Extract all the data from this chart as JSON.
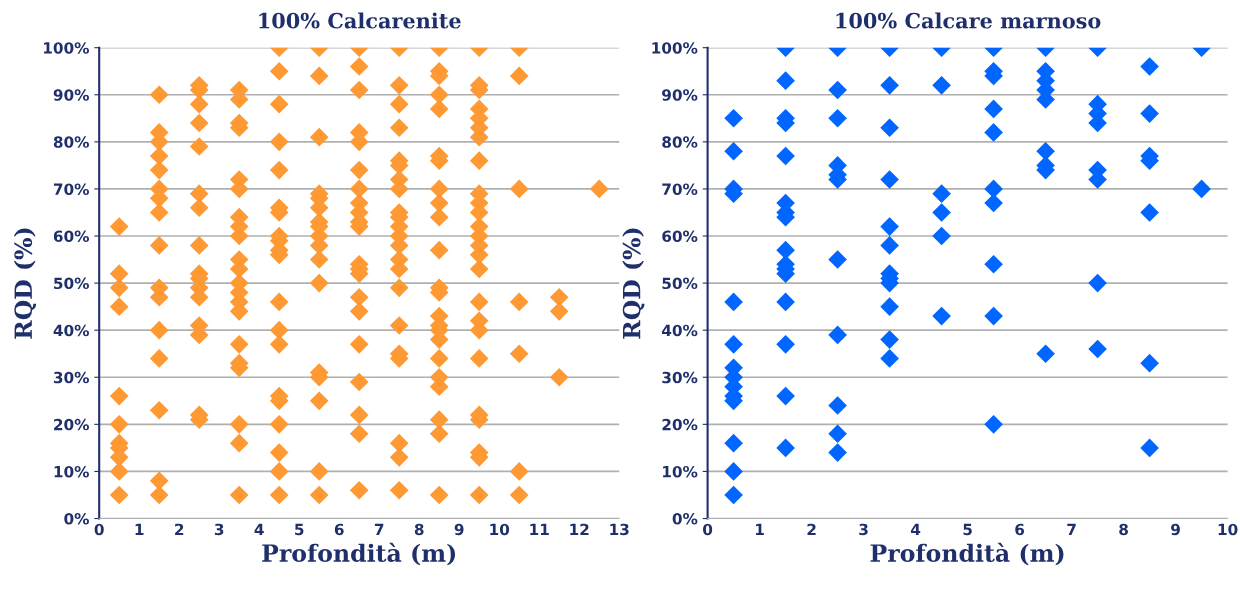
{
  "chart_data": [
    {
      "type": "scatter",
      "title": "100% Calcarenite",
      "xlabel": "Profondità (m)",
      "ylabel": "RQD (%)",
      "xlim": [
        0,
        13
      ],
      "xticks": [
        0,
        1,
        2,
        3,
        4,
        5,
        6,
        7,
        8,
        9,
        10,
        11,
        12,
        13
      ],
      "ylim": [
        0,
        100
      ],
      "yticks": [
        {
          "value": 0,
          "label": "0%"
        },
        {
          "value": 10,
          "label": "10%"
        },
        {
          "value": 20,
          "label": "20%"
        },
        {
          "value": 30,
          "label": "30%"
        },
        {
          "value": 40,
          "label": "40%"
        },
        {
          "value": 50,
          "label": "50%"
        },
        {
          "value": 60,
          "label": "60%"
        },
        {
          "value": 70,
          "label": "70%"
        },
        {
          "value": 80,
          "label": "80%"
        },
        {
          "value": 90,
          "label": "90%"
        },
        {
          "value": 100,
          "label": "100%"
        }
      ],
      "grid": "y",
      "marker": "diamond",
      "series": [
        {
          "color": "#ff9933",
          "x": [
            0.5,
            0.5,
            0.5,
            0.5,
            0.5,
            0.5,
            0.5,
            0.5,
            0.5,
            0.5,
            0.5,
            1.5,
            1.5,
            1.5,
            1.5,
            1.5,
            1.5,
            1.5,
            1.5,
            1.5,
            1.5,
            1.5,
            1.5,
            1.5,
            1.5,
            1.5,
            1.5,
            2.5,
            2.5,
            2.5,
            2.5,
            2.5,
            2.5,
            2.5,
            2.5,
            2.5,
            2.5,
            2.5,
            2.5,
            2.5,
            2.5,
            2.5,
            2.5,
            3.5,
            3.5,
            3.5,
            3.5,
            3.5,
            3.5,
            3.5,
            3.5,
            3.5,
            3.5,
            3.5,
            3.5,
            3.5,
            3.5,
            3.5,
            3.5,
            3.5,
            3.5,
            3.5,
            3.5,
            3.5,
            4.5,
            4.5,
            4.5,
            4.5,
            4.5,
            4.5,
            4.5,
            4.5,
            4.5,
            4.5,
            4.5,
            4.5,
            4.5,
            4.5,
            4.5,
            4.5,
            4.5,
            4.5,
            4.5,
            4.5,
            5.5,
            5.5,
            5.5,
            5.5,
            5.5,
            5.5,
            5.5,
            5.5,
            5.5,
            5.5,
            5.5,
            5.5,
            5.5,
            5.5,
            5.5,
            5.5,
            5.5,
            6.5,
            6.5,
            6.5,
            6.5,
            6.5,
            6.5,
            6.5,
            6.5,
            6.5,
            6.5,
            6.5,
            6.5,
            6.5,
            6.5,
            6.5,
            6.5,
            6.5,
            6.5,
            6.5,
            6.5,
            6.5,
            7.5,
            7.5,
            7.5,
            7.5,
            7.5,
            7.5,
            7.5,
            7.5,
            7.5,
            7.5,
            7.5,
            7.5,
            7.5,
            7.5,
            7.5,
            7.5,
            7.5,
            7.5,
            7.5,
            7.5,
            7.5,
            7.5,
            8.5,
            8.5,
            8.5,
            8.5,
            8.5,
            8.5,
            8.5,
            8.5,
            8.5,
            8.5,
            8.5,
            8.5,
            8.5,
            8.5,
            8.5,
            8.5,
            8.5,
            8.5,
            8.5,
            8.5,
            8.5,
            8.5,
            8.5,
            9.5,
            9.5,
            9.5,
            9.5,
            9.5,
            9.5,
            9.5,
            9.5,
            9.5,
            9.5,
            9.5,
            9.5,
            9.5,
            9.5,
            9.5,
            9.5,
            9.5,
            9.5,
            9.5,
            9.5,
            9.5,
            9.5,
            9.5,
            9.5,
            9.5,
            10.5,
            10.5,
            10.5,
            10.5,
            10.5,
            10.5,
            10.5,
            11.5,
            11.5,
            11.5,
            12.5
          ],
          "values": [
            62,
            52,
            49,
            45,
            26,
            20,
            16,
            15,
            13,
            10,
            5,
            90,
            82,
            80,
            77,
            74,
            70,
            68,
            65,
            58,
            49,
            47,
            40,
            34,
            23,
            8,
            5,
            92,
            91,
            88,
            84,
            79,
            69,
            66,
            58,
            52,
            51,
            49,
            47,
            41,
            39,
            22,
            21,
            91,
            89,
            84,
            83,
            72,
            70,
            64,
            62,
            60,
            55,
            53,
            50,
            48,
            46,
            44,
            37,
            33,
            32,
            20,
            16,
            5,
            100,
            95,
            88,
            80,
            74,
            66,
            65,
            60,
            59,
            57,
            56,
            46,
            40,
            37,
            26,
            25,
            20,
            14,
            10,
            5,
            100,
            94,
            81,
            69,
            68,
            66,
            63,
            62,
            60,
            58,
            55,
            50,
            31,
            30,
            25,
            10,
            5,
            100,
            96,
            91,
            82,
            80,
            74,
            70,
            67,
            65,
            63,
            62,
            54,
            53,
            52,
            47,
            44,
            37,
            29,
            22,
            18,
            6,
            100,
            92,
            88,
            83,
            76,
            75,
            72,
            70,
            65,
            64,
            62,
            60,
            58,
            55,
            53,
            49,
            41,
            35,
            34,
            16,
            13,
            6,
            100,
            95,
            94,
            90,
            87,
            77,
            76,
            70,
            67,
            64,
            57,
            49,
            48,
            43,
            41,
            40,
            38,
            34,
            30,
            28,
            21,
            18,
            5,
            100,
            92,
            91,
            87,
            85,
            83,
            81,
            76,
            69,
            67,
            65,
            62,
            60,
            58,
            56,
            53,
            46,
            42,
            40,
            34,
            22,
            21,
            14,
            13,
            5,
            100,
            94,
            70,
            46,
            35,
            10,
            5,
            47,
            44,
            30,
            70
          ]
        }
      ]
    },
    {
      "type": "scatter",
      "title": "100% Calcare marnoso",
      "xlabel": "Profondità (m)",
      "ylabel": "RQD (%)",
      "xlim": [
        0,
        10
      ],
      "xticks": [
        0,
        1,
        2,
        3,
        4,
        5,
        6,
        7,
        8,
        9,
        10
      ],
      "ylim": [
        0,
        100
      ],
      "yticks": [
        {
          "value": 0,
          "label": "0%"
        },
        {
          "value": 10,
          "label": "10%"
        },
        {
          "value": 20,
          "label": "20%"
        },
        {
          "value": 30,
          "label": "30%"
        },
        {
          "value": 40,
          "label": "40%"
        },
        {
          "value": 50,
          "label": "50%"
        },
        {
          "value": 60,
          "label": "60%"
        },
        {
          "value": 70,
          "label": "70%"
        },
        {
          "value": 80,
          "label": "80%"
        },
        {
          "value": 90,
          "label": "90%"
        },
        {
          "value": 100,
          "label": "100%"
        }
      ],
      "grid": "y",
      "marker": "diamond",
      "series": [
        {
          "color": "#0066ff",
          "x": [
            0.5,
            0.5,
            0.5,
            0.5,
            0.5,
            0.5,
            0.5,
            0.5,
            0.5,
            0.5,
            0.5,
            0.5,
            0.5,
            0.5,
            1.5,
            1.5,
            1.5,
            1.5,
            1.5,
            1.5,
            1.5,
            1.5,
            1.5,
            1.5,
            1.5,
            1.5,
            1.5,
            1.5,
            1.5,
            1.5,
            2.5,
            2.5,
            2.5,
            2.5,
            2.5,
            2.5,
            2.5,
            2.5,
            2.5,
            2.5,
            2.5,
            3.5,
            3.5,
            3.5,
            3.5,
            3.5,
            3.5,
            3.5,
            3.5,
            3.5,
            3.5,
            3.5,
            3.5,
            4.5,
            4.5,
            4.5,
            4.5,
            4.5,
            4.5,
            5.5,
            5.5,
            5.5,
            5.5,
            5.5,
            5.5,
            5.5,
            5.5,
            5.5,
            5.5,
            6.5,
            6.5,
            6.5,
            6.5,
            6.5,
            6.5,
            6.5,
            6.5,
            6.5,
            7.5,
            7.5,
            7.5,
            7.5,
            7.5,
            7.5,
            7.5,
            7.5,
            8.5,
            8.5,
            8.5,
            8.5,
            8.5,
            8.5,
            8.5,
            9.5,
            9.5
          ],
          "values": [
            85,
            78,
            70,
            69,
            46,
            37,
            32,
            30,
            28,
            26,
            25,
            16,
            10,
            5,
            100,
            93,
            85,
            84,
            77,
            67,
            65,
            64,
            57,
            54,
            53,
            52,
            46,
            37,
            26,
            15,
            100,
            91,
            85,
            75,
            73,
            72,
            55,
            39,
            24,
            18,
            14,
            100,
            92,
            83,
            72,
            62,
            58,
            52,
            51,
            50,
            45,
            38,
            34,
            100,
            92,
            69,
            65,
            60,
            43,
            100,
            95,
            94,
            87,
            82,
            70,
            67,
            54,
            43,
            20,
            100,
            95,
            93,
            91,
            89,
            78,
            75,
            74,
            35,
            100,
            88,
            86,
            84,
            74,
            72,
            50,
            36,
            96,
            86,
            77,
            76,
            65,
            33,
            15,
            100,
            70
          ]
        }
      ]
    }
  ]
}
